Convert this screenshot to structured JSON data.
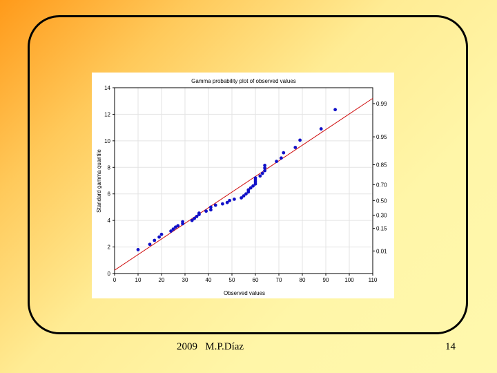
{
  "footer": {
    "left_text": "2009   M.P.Díaz",
    "page_number": "14"
  },
  "colors": {
    "point": "#1010c8",
    "fit_line": "#d01010",
    "grid": "#e3e3e3"
  },
  "chart_data": {
    "type": "scatter",
    "title": "Gamma probability plot of observed values",
    "xlabel": "Observed values",
    "ylabel": "Standard gamma quantile",
    "xlim": [
      0,
      110
    ],
    "ylim": [
      0,
      14
    ],
    "x_ticks": [
      0,
      10,
      20,
      30,
      40,
      50,
      60,
      70,
      80,
      90,
      100,
      110
    ],
    "y_ticks": [
      0,
      2,
      4,
      6,
      8,
      10,
      12,
      14
    ],
    "grid": true,
    "right_axis": {
      "labels": [
        "0.01",
        "0.15",
        "0.30",
        "0.50",
        "0.70",
        "0.85",
        "0.95",
        "0.99"
      ],
      "quantiles": [
        1.7,
        3.4,
        4.4,
        5.5,
        6.7,
        8.2,
        10.3,
        12.8
      ]
    },
    "fit_line": {
      "x": [
        0,
        110
      ],
      "y": [
        0.25,
        13.2
      ]
    },
    "points": [
      {
        "x": 10,
        "y": 1.8
      },
      {
        "x": 15,
        "y": 2.2
      },
      {
        "x": 17,
        "y": 2.5
      },
      {
        "x": 19,
        "y": 2.75
      },
      {
        "x": 20,
        "y": 2.95
      },
      {
        "x": 24,
        "y": 3.2
      },
      {
        "x": 25,
        "y": 3.35
      },
      {
        "x": 26,
        "y": 3.5
      },
      {
        "x": 27,
        "y": 3.6
      },
      {
        "x": 29,
        "y": 3.75
      },
      {
        "x": 29,
        "y": 3.9
      },
      {
        "x": 33,
        "y": 4.0
      },
      {
        "x": 34,
        "y": 4.15
      },
      {
        "x": 35,
        "y": 4.3
      },
      {
        "x": 36,
        "y": 4.45
      },
      {
        "x": 36,
        "y": 4.55
      },
      {
        "x": 39,
        "y": 4.7
      },
      {
        "x": 41,
        "y": 4.8
      },
      {
        "x": 41,
        "y": 5.0
      },
      {
        "x": 43,
        "y": 5.15
      },
      {
        "x": 46,
        "y": 5.25
      },
      {
        "x": 48,
        "y": 5.35
      },
      {
        "x": 49,
        "y": 5.5
      },
      {
        "x": 51,
        "y": 5.6
      },
      {
        "x": 54,
        "y": 5.7
      },
      {
        "x": 55,
        "y": 5.85
      },
      {
        "x": 56,
        "y": 6.0
      },
      {
        "x": 57,
        "y": 6.15
      },
      {
        "x": 57,
        "y": 6.3
      },
      {
        "x": 58,
        "y": 6.45
      },
      {
        "x": 59,
        "y": 6.6
      },
      {
        "x": 60,
        "y": 6.75
      },
      {
        "x": 60,
        "y": 6.9
      },
      {
        "x": 60,
        "y": 7.05
      },
      {
        "x": 60,
        "y": 7.2
      },
      {
        "x": 62,
        "y": 7.35
      },
      {
        "x": 63,
        "y": 7.55
      },
      {
        "x": 64,
        "y": 7.75
      },
      {
        "x": 64,
        "y": 7.95
      },
      {
        "x": 64,
        "y": 8.15
      },
      {
        "x": 69,
        "y": 8.45
      },
      {
        "x": 71,
        "y": 8.7
      },
      {
        "x": 72,
        "y": 9.1
      },
      {
        "x": 77,
        "y": 9.5
      },
      {
        "x": 79,
        "y": 10.05
      },
      {
        "x": 88,
        "y": 10.9
      },
      {
        "x": 94,
        "y": 12.35
      }
    ]
  }
}
